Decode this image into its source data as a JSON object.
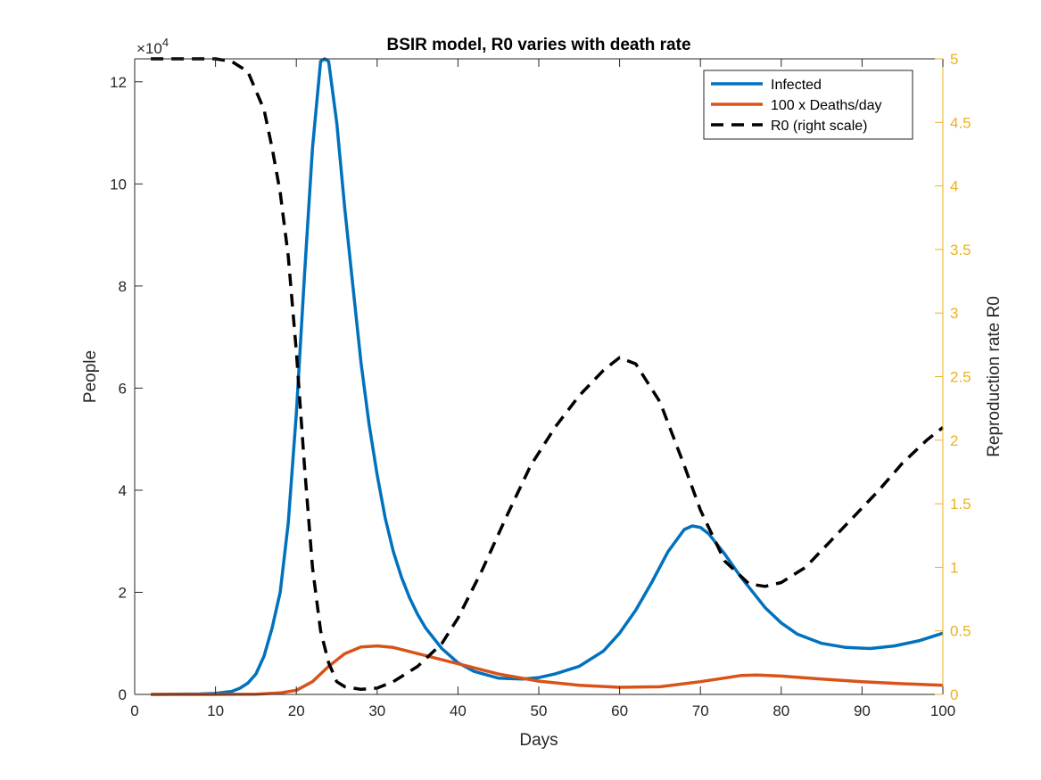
{
  "chart_data": {
    "type": "line",
    "title": "BSIR model, R0 varies with death rate",
    "xlabel": "Days",
    "ylabel": "People",
    "ylabel_right": "Reproduction rate R0",
    "xlim": [
      0,
      100
    ],
    "ylim": [
      0,
      124500
    ],
    "ylim_right": [
      0,
      5
    ],
    "y_exponent_base": "×10",
    "y_exponent_power": "4",
    "colors": {
      "infected": "#0072BD",
      "deaths": "#D95319",
      "r0": "#000000",
      "right_axis": "#EDB120",
      "axis": "#262626"
    },
    "x_ticks": [
      {
        "value": 0,
        "label": "0"
      },
      {
        "value": 10,
        "label": "10"
      },
      {
        "value": 20,
        "label": "20"
      },
      {
        "value": 30,
        "label": "30"
      },
      {
        "value": 40,
        "label": "40"
      },
      {
        "value": 50,
        "label": "50"
      },
      {
        "value": 60,
        "label": "60"
      },
      {
        "value": 70,
        "label": "70"
      },
      {
        "value": 80,
        "label": "80"
      },
      {
        "value": 90,
        "label": "90"
      },
      {
        "value": 100,
        "label": "100"
      }
    ],
    "y_ticks": [
      {
        "value": 0,
        "label": "0"
      },
      {
        "value": 20000,
        "label": "2"
      },
      {
        "value": 40000,
        "label": "4"
      },
      {
        "value": 60000,
        "label": "6"
      },
      {
        "value": 80000,
        "label": "8"
      },
      {
        "value": 100000,
        "label": "10"
      },
      {
        "value": 120000,
        "label": "12"
      }
    ],
    "y_right_ticks": [
      {
        "value": 0,
        "label": "0"
      },
      {
        "value": 0.5,
        "label": "0.5"
      },
      {
        "value": 1,
        "label": "1"
      },
      {
        "value": 1.5,
        "label": "1.5"
      },
      {
        "value": 2,
        "label": "2"
      },
      {
        "value": 2.5,
        "label": "2.5"
      },
      {
        "value": 3,
        "label": "3"
      },
      {
        "value": 3.5,
        "label": "3.5"
      },
      {
        "value": 4,
        "label": "4"
      },
      {
        "value": 4.5,
        "label": "4.5"
      },
      {
        "value": 5,
        "label": "5"
      }
    ],
    "legend": {
      "position": "top-right",
      "entries": [
        {
          "label": "Infected",
          "series": "infected"
        },
        {
          "label": "100 x Deaths/day",
          "series": "deaths"
        },
        {
          "label": "R0 (right scale)",
          "series": "r0"
        }
      ]
    },
    "series": [
      {
        "name": "Infected",
        "key": "infected",
        "axis": "left",
        "style": "solid",
        "x": [
          2,
          8,
          10,
          12,
          13,
          14,
          15,
          16,
          17,
          18,
          19,
          20,
          21,
          22,
          23,
          23.5,
          24,
          25,
          26,
          27,
          28,
          29,
          30,
          31,
          32,
          33,
          34,
          35,
          36,
          38,
          40,
          42,
          45,
          48,
          50,
          52,
          55,
          58,
          60,
          62,
          64,
          66,
          68,
          69,
          70,
          71,
          73,
          75,
          78,
          80,
          82,
          85,
          88,
          91,
          94,
          97,
          100
        ],
        "values": [
          0,
          80,
          200,
          600,
          1200,
          2200,
          4000,
          7500,
          13000,
          20000,
          33500,
          55000,
          82000,
          107000,
          124000,
          124500,
          124000,
          112000,
          95000,
          80000,
          65000,
          53000,
          43000,
          34500,
          28000,
          23000,
          19000,
          15700,
          13000,
          9000,
          6200,
          4500,
          3200,
          3000,
          3300,
          4000,
          5500,
          8500,
          12000,
          16500,
          22000,
          28000,
          32300,
          33000,
          32700,
          31500,
          27500,
          23000,
          17000,
          14000,
          11800,
          10000,
          9200,
          9000,
          9500,
          10500,
          12000
        ]
      },
      {
        "name": "100 x Deaths/day",
        "key": "deaths",
        "axis": "left",
        "style": "solid",
        "x": [
          2,
          10,
          15,
          18,
          20,
          22,
          24,
          26,
          28,
          30,
          32,
          35,
          40,
          45,
          50,
          55,
          60,
          65,
          70,
          75,
          77,
          80,
          85,
          90,
          95,
          100
        ],
        "values": [
          0,
          0,
          50,
          300,
          800,
          2500,
          5500,
          8000,
          9300,
          9500,
          9200,
          8000,
          6000,
          4000,
          2600,
          1800,
          1400,
          1500,
          2500,
          3700,
          3800,
          3600,
          3000,
          2500,
          2100,
          1800
        ]
      },
      {
        "name": "R0 (right scale)",
        "key": "r0",
        "axis": "right",
        "style": "dashed",
        "x": [
          2,
          5,
          8,
          10,
          12,
          14,
          16,
          17,
          18,
          19,
          20,
          21,
          22,
          23,
          24,
          25,
          26,
          28,
          30,
          32,
          35,
          38,
          40,
          43,
          46,
          49,
          52,
          55,
          58,
          60,
          62,
          65,
          68,
          70,
          73,
          76,
          78,
          80,
          83,
          86,
          89,
          92,
          95,
          98,
          100
        ],
        "values": [
          5,
          5,
          5,
          5,
          4.98,
          4.9,
          4.6,
          4.3,
          3.95,
          3.45,
          2.7,
          1.8,
          1.0,
          0.5,
          0.25,
          0.1,
          0.06,
          0.04,
          0.05,
          0.1,
          0.22,
          0.4,
          0.6,
          0.98,
          1.4,
          1.8,
          2.1,
          2.35,
          2.55,
          2.65,
          2.6,
          2.3,
          1.8,
          1.45,
          1.05,
          0.87,
          0.85,
          0.88,
          1.0,
          1.2,
          1.4,
          1.6,
          1.82,
          2.0,
          2.1
        ]
      }
    ]
  }
}
